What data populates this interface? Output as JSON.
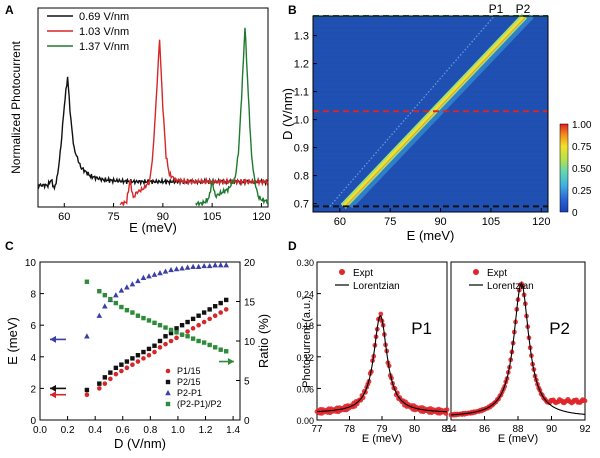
{
  "panel_labels": [
    "A",
    "B",
    "C",
    "D"
  ],
  "colors": {
    "black": "#111111",
    "red": "#d62728",
    "green": "#1f7a2e",
    "blue": "#3b3fa8",
    "squareGreen": "#2e8b3a",
    "dotRed": "#e0262b",
    "heatmapBg": "#1f4fb0"
  },
  "chart_data": [
    {
      "panel": "A",
      "type": "line",
      "xlabel": "E (meV)",
      "ylabel": "Normalized Photocurrent",
      "xlim": [
        52,
        122
      ],
      "ylim": [
        0,
        1.1
      ],
      "xticks": [
        "60",
        "75",
        "90",
        "105",
        "120"
      ],
      "legend_position": "top-left",
      "series": [
        {
          "name": "0.69 V/nm",
          "color": "black",
          "x": [
            52,
            55,
            56,
            57,
            58,
            59,
            60,
            61,
            62,
            63,
            65,
            68,
            72,
            80,
            90,
            100,
            110,
            115,
            118,
            122
          ],
          "y": [
            0.12,
            0.12,
            0.15,
            0.1,
            0.18,
            0.34,
            0.56,
            0.72,
            0.48,
            0.32,
            0.22,
            0.17,
            0.15,
            0.14,
            0.14,
            0.14,
            0.14,
            0.14,
            0.14,
            0.14
          ]
        },
        {
          "name": "1.03 V/nm",
          "color": "red",
          "x": [
            77,
            78,
            79,
            80,
            81,
            82,
            84,
            86,
            87,
            88,
            89,
            90,
            91,
            92,
            94,
            97,
            100,
            105,
            115,
            122
          ],
          "y": [
            0.02,
            0.02,
            0.03,
            0.15,
            0.05,
            0.08,
            0.1,
            0.14,
            0.3,
            0.6,
            0.93,
            0.55,
            0.28,
            0.18,
            0.15,
            0.14,
            0.14,
            0.14,
            0.14,
            0.14
          ]
        },
        {
          "name": "1.37 V/nm",
          "color": "green",
          "x": [
            100,
            102,
            103,
            104,
            105,
            106,
            108,
            110,
            112,
            113,
            114,
            115,
            116,
            117,
            118,
            119,
            120,
            122
          ],
          "y": [
            0.02,
            0.02,
            0.03,
            0.05,
            0.14,
            0.06,
            0.08,
            0.1,
            0.16,
            0.3,
            0.62,
            1.0,
            0.62,
            0.28,
            0.14,
            0.06,
            0.04,
            0.03
          ]
        }
      ]
    },
    {
      "panel": "B",
      "type": "heatmap",
      "xlabel": "E (meV)",
      "ylabel": "D (V/nm)",
      "xlim": [
        52,
        122
      ],
      "ylim": [
        0.67,
        1.37
      ],
      "xticks": [
        "60",
        "75",
        "90",
        "105",
        "120"
      ],
      "yticks": [
        "0.7",
        "0.8",
        "0.9",
        "1.0",
        "1.1",
        "1.2",
        "1.3"
      ],
      "peak_labels": [
        "P1",
        "P2"
      ],
      "colorbar": {
        "ticks": [
          "1.00",
          "0.75",
          "0.50",
          "0.25",
          "0"
        ],
        "range": [
          0,
          1
        ]
      },
      "P1_line": {
        "D": [
          0.69,
          1.37
        ],
        "E": [
          57,
          106
        ]
      },
      "P2_line": {
        "D": [
          0.69,
          1.37
        ],
        "E": [
          61,
          115
        ]
      },
      "cut_lines": [
        {
          "D": 1.37,
          "color": "green"
        },
        {
          "D": 1.03,
          "color": "red"
        },
        {
          "D": 0.69,
          "color": "black"
        }
      ]
    },
    {
      "panel": "C",
      "type": "scatter",
      "xlabel": "D (V/nm)",
      "ylabel": "E (meV)",
      "ylabel2": "Ratio (%)",
      "xlim": [
        0,
        1.45
      ],
      "ylim": [
        0,
        10
      ],
      "ylim2": [
        0,
        20
      ],
      "xticks": [
        "0.0",
        "0.2",
        "0.4",
        "0.6",
        "0.8",
        "1.0",
        "1.2",
        "1.4"
      ],
      "yticks": [
        "0",
        "2",
        "4",
        "6",
        "8",
        "10"
      ],
      "yticks2": [
        "0",
        "5",
        "10",
        "15",
        "20"
      ],
      "legend_position": "bottom-right",
      "series": [
        {
          "name": "P1/15",
          "color": "red",
          "marker": "circle",
          "axis": "left",
          "x": [
            0.34,
            0.43,
            0.47,
            0.51,
            0.55,
            0.59,
            0.63,
            0.67,
            0.71,
            0.75,
            0.79,
            0.83,
            0.87,
            0.91,
            0.95,
            0.99,
            1.03,
            1.07,
            1.11,
            1.15,
            1.19,
            1.23,
            1.27,
            1.31,
            1.35
          ],
          "y": [
            1.6,
            2.0,
            2.3,
            2.6,
            2.9,
            3.1,
            3.3,
            3.5,
            3.7,
            3.9,
            4.1,
            4.3,
            4.6,
            4.8,
            5.0,
            5.2,
            5.4,
            5.6,
            5.8,
            6.0,
            6.2,
            6.4,
            6.6,
            6.8,
            7.0
          ]
        },
        {
          "name": "P2/15",
          "color": "black",
          "marker": "square",
          "axis": "left",
          "x": [
            0.34,
            0.43,
            0.47,
            0.51,
            0.55,
            0.59,
            0.63,
            0.67,
            0.71,
            0.75,
            0.79,
            0.83,
            0.87,
            0.91,
            0.95,
            0.99,
            1.03,
            1.07,
            1.11,
            1.15,
            1.19,
            1.23,
            1.27,
            1.31,
            1.35
          ],
          "y": [
            1.9,
            2.3,
            2.7,
            3.0,
            3.3,
            3.5,
            3.7,
            3.9,
            4.1,
            4.3,
            4.5,
            4.7,
            5.0,
            5.3,
            5.5,
            5.8,
            6.0,
            6.2,
            6.4,
            6.6,
            6.8,
            7.0,
            7.2,
            7.4,
            7.6
          ]
        },
        {
          "name": "P2-P1",
          "color": "blue",
          "marker": "triangle",
          "axis": "left",
          "x": [
            0.34,
            0.43,
            0.47,
            0.51,
            0.55,
            0.59,
            0.63,
            0.67,
            0.71,
            0.75,
            0.79,
            0.83,
            0.87,
            0.91,
            0.95,
            0.99,
            1.03,
            1.07,
            1.11,
            1.15,
            1.19,
            1.23,
            1.27,
            1.31,
            1.35
          ],
          "y": [
            5.3,
            6.6,
            7.2,
            7.6,
            7.9,
            8.2,
            8.4,
            8.6,
            8.8,
            9.0,
            9.1,
            9.2,
            9.3,
            9.4,
            9.5,
            9.55,
            9.6,
            9.65,
            9.7,
            9.7,
            9.75,
            9.75,
            9.8,
            9.8,
            9.8
          ]
        },
        {
          "name": "(P2-P1)/P2",
          "color": "squareGreen",
          "marker": "square",
          "axis": "right",
          "x": [
            0.34,
            0.43,
            0.47,
            0.51,
            0.55,
            0.59,
            0.63,
            0.67,
            0.71,
            0.75,
            0.79,
            0.83,
            0.87,
            0.91,
            0.95,
            0.99,
            1.03,
            1.07,
            1.11,
            1.15,
            1.19,
            1.23,
            1.27,
            1.31,
            1.35
          ],
          "y": [
            17.5,
            16.3,
            15.8,
            15.3,
            14.8,
            14.3,
            13.9,
            13.6,
            13.2,
            12.9,
            12.6,
            12.3,
            12.0,
            11.7,
            11.4,
            11.1,
            10.8,
            10.6,
            10.3,
            10.0,
            9.8,
            9.5,
            9.2,
            8.9,
            8.7
          ]
        }
      ]
    },
    {
      "panel": "D",
      "type": "scatter",
      "xlabel": "E (meV)",
      "ylabel": "Photocurrent (a.u.)",
      "subplots": [
        {
          "label": "P1",
          "xlim": [
            77,
            81
          ],
          "ylim": [
            0,
            0.3
          ],
          "xticks": [
            "77",
            "78",
            "79",
            "80",
            "81"
          ],
          "yticks": [
            "0.00",
            "0.06",
            "0.12",
            "0.18",
            "0.24",
            "0.30"
          ],
          "legend": [
            "Expt",
            "Lorentzian"
          ],
          "peak": 78.95,
          "hwhm": 0.25,
          "amp": 0.185,
          "base": 0.013
        },
        {
          "label": "P2",
          "xlim": [
            84,
            92
          ],
          "ylim": [
            0,
            1.1
          ],
          "xticks": [
            "84",
            "86",
            "88",
            "90",
            "92"
          ],
          "yticks": [],
          "legend": [
            "Expt",
            "Lorentzian"
          ],
          "peak": 88.2,
          "hwhm": 0.55,
          "amp": 0.93,
          "base": 0.02,
          "expt_tail": 0.13
        }
      ]
    }
  ]
}
